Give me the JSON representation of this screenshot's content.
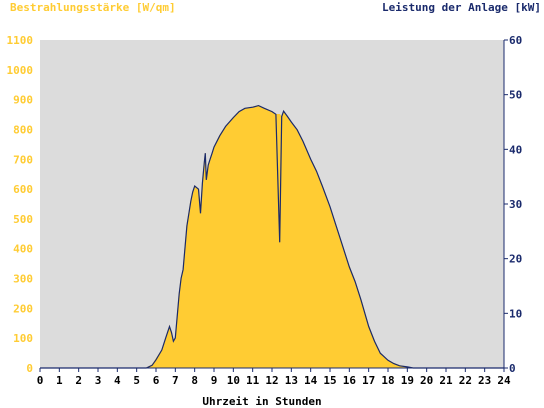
{
  "chart_data": {
    "type": "area",
    "left_axis_title": "Bestrahlungsstärke [W/qm]",
    "right_axis_title": "Leistung der Anlage [kW]",
    "xlabel": "Uhrzeit in Stunden",
    "xlim": [
      0,
      24
    ],
    "x_ticks": [
      "0",
      "1",
      "2",
      "3",
      "4",
      "5",
      "6",
      "7",
      "8",
      "9",
      "10",
      "11",
      "12",
      "13",
      "14",
      "15",
      "16",
      "17",
      "18",
      "19",
      "20",
      "21",
      "22",
      "23",
      "24"
    ],
    "y_left_lim": [
      0,
      1100
    ],
    "y_left_ticks": [
      "0",
      "100",
      "200",
      "300",
      "400",
      "500",
      "600",
      "700",
      "800",
      "900",
      "1000",
      "1100"
    ],
    "y_right_lim": [
      0,
      60
    ],
    "y_right_ticks": [
      "0",
      "10",
      "20",
      "30",
      "40",
      "50",
      "60"
    ],
    "colors": {
      "irradiance": "#ffcc33",
      "power": "#1a2a6c",
      "plot_bg": "#dcdcdc",
      "axis": "#1a2a6c"
    },
    "grid": false,
    "series": [
      {
        "name": "Bestrahlungsstärke [W/qm]",
        "axis": "left",
        "x": [
          0,
          5.5,
          5.8,
          6.0,
          6.3,
          6.5,
          6.7,
          6.8,
          6.9,
          7.0,
          7.2,
          7.3,
          7.4,
          7.6,
          7.7,
          7.8,
          7.9,
          8.0,
          8.2,
          8.3,
          8.4,
          8.5,
          8.55,
          8.6,
          8.7,
          8.8,
          8.9,
          9.0,
          9.3,
          9.6,
          10.0,
          10.3,
          10.6,
          11.0,
          11.3,
          11.6,
          12.0,
          12.2,
          12.4,
          12.5,
          12.6,
          12.8,
          13.0,
          13.3,
          13.6,
          14.0,
          14.3,
          14.6,
          15.0,
          15.3,
          15.6,
          16.0,
          16.3,
          16.6,
          17.0,
          17.3,
          17.6,
          18.0,
          18.3,
          18.6,
          19.0,
          19.3,
          19.5,
          19.6,
          24
        ],
        "y": [
          0,
          0,
          10,
          30,
          60,
          100,
          140,
          120,
          90,
          100,
          250,
          300,
          330,
          480,
          520,
          560,
          590,
          610,
          600,
          520,
          620,
          690,
          720,
          630,
          680,
          700,
          720,
          740,
          780,
          810,
          840,
          860,
          870,
          875,
          880,
          870,
          860,
          850,
          850,
          840,
          860,
          840,
          820,
          800,
          760,
          700,
          660,
          610,
          540,
          480,
          420,
          340,
          290,
          230,
          140,
          90,
          50,
          25,
          15,
          8,
          3,
          0,
          0,
          0,
          0
        ]
      },
      {
        "name": "Leistung der Anlage [kW]",
        "axis": "right",
        "x": [
          0,
          5.5,
          5.8,
          6.0,
          6.3,
          6.5,
          6.7,
          6.8,
          6.9,
          7.0,
          7.2,
          7.3,
          7.4,
          7.6,
          7.7,
          7.8,
          7.9,
          8.0,
          8.2,
          8.3,
          8.4,
          8.5,
          8.55,
          8.6,
          8.7,
          8.8,
          8.9,
          9.0,
          9.3,
          9.6,
          10.0,
          10.3,
          10.6,
          11.0,
          11.3,
          11.6,
          12.0,
          12.2,
          12.4,
          12.5,
          12.6,
          12.8,
          13.0,
          13.3,
          13.6,
          14.0,
          14.3,
          14.6,
          15.0,
          15.3,
          15.6,
          16.0,
          16.3,
          16.6,
          17.0,
          17.3,
          17.6,
          18.0,
          18.3,
          18.6,
          19.0,
          19.3,
          19.5,
          19.6,
          24
        ],
        "y": [
          0,
          0,
          0.5,
          1.5,
          3.3,
          5.5,
          7.6,
          6.5,
          4.9,
          5.5,
          13.6,
          16.4,
          18,
          26,
          28.3,
          30.5,
          32.2,
          33.3,
          32.7,
          28.3,
          33.8,
          37.6,
          39.3,
          34.4,
          37.1,
          38.2,
          39.3,
          40.4,
          42.5,
          44.2,
          45.8,
          46.9,
          47.5,
          47.7,
          48,
          47.5,
          46.9,
          46.4,
          23,
          46,
          47,
          46,
          45,
          43.6,
          41.5,
          38.2,
          36,
          33.3,
          29.5,
          26.2,
          22.9,
          18.5,
          15.8,
          12.5,
          7.6,
          4.9,
          2.7,
          1.4,
          0.8,
          0.4,
          0.2,
          0,
          0,
          0,
          0
        ]
      }
    ]
  }
}
